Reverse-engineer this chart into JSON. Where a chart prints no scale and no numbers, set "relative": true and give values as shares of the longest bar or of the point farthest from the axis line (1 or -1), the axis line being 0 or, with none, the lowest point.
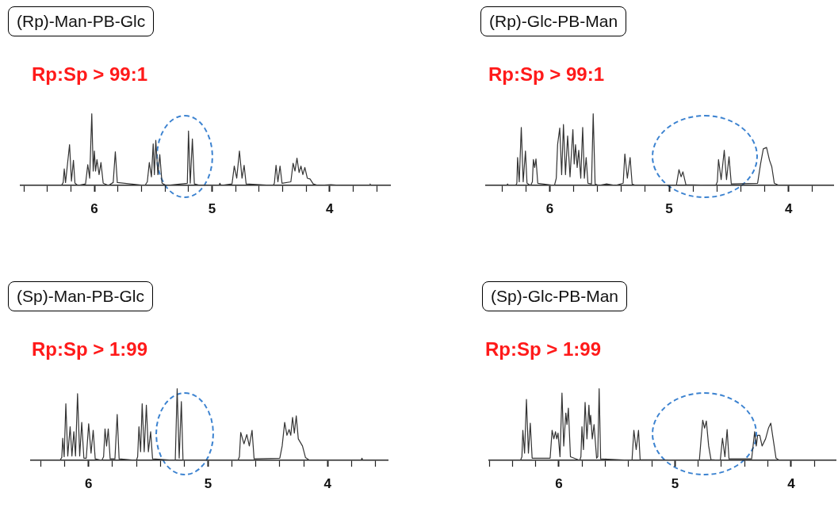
{
  "chart_data": [
    {
      "type": "line",
      "title": "(Rp)-Man-PB-Glc",
      "subtitle": "Rp:Sp > 99:1",
      "relative": true,
      "legend": false,
      "grid": false,
      "marker": "none",
      "tick_labels": "x",
      "xlim": [
        6.63,
        3.48
      ],
      "xticks": [
        {
          "value": 6.6,
          "label": null
        },
        {
          "value": 6.4,
          "label": null
        },
        {
          "value": 6.2,
          "label": null
        },
        6,
        {
          "value": 5.8,
          "label": null
        },
        {
          "value": 5.6,
          "label": null
        },
        {
          "value": 5.4,
          "label": null
        },
        {
          "value": 5.2,
          "label": null
        },
        5,
        {
          "value": 4.8,
          "label": null
        },
        {
          "value": 4.6,
          "label": null
        },
        {
          "value": 4.4,
          "label": null
        },
        {
          "value": 4.2,
          "label": null
        },
        4,
        {
          "value": 3.8,
          "label": null
        },
        {
          "value": 3.6,
          "label": null
        }
      ],
      "series": [
        {
          "color": "#333333",
          "x": [
            6.63,
            6.28,
            6.265,
            6.256,
            6.245,
            6.211,
            6.195,
            6.178,
            6.165,
            6.14,
            6.075,
            6.056,
            6.04,
            6.022,
            6.01,
            6.0,
            5.99,
            5.978,
            5.96,
            5.944,
            5.925,
            5.88,
            5.84,
            5.822,
            5.805,
            5.57,
            5.55,
            5.533,
            5.515,
            5.5,
            5.49,
            5.478,
            5.46,
            5.444,
            5.425,
            5.39,
            5.21,
            5.2,
            5.185,
            5.167,
            5.15,
            5.1,
            4.94,
            4.933,
            4.925,
            4.83,
            4.811,
            4.79,
            4.767,
            4.745,
            4.727,
            4.71,
            4.48,
            4.47,
            4.456,
            4.44,
            4.422,
            4.405,
            4.33,
            4.311,
            4.295,
            4.278,
            4.26,
            4.244,
            4.228,
            4.211,
            4.19,
            4.167,
            4.14,
            4.1,
            3.99,
            3.9,
            3.66,
            3.656,
            3.65,
            3.48
          ],
          "values": [
            0,
            0,
            0.04,
            0.23,
            0.04,
            0.57,
            0.06,
            0.35,
            0.03,
            0,
            0.02,
            0.29,
            0.1,
            1.0,
            0.2,
            0.48,
            0.2,
            0.36,
            0.15,
            0.32,
            0.03,
            0,
            0.04,
            0.47,
            0.04,
            0,
            0.05,
            0.32,
            0.12,
            0.58,
            0.15,
            0.63,
            0.15,
            0.43,
            0.03,
            0,
            0.03,
            0.76,
            0.03,
            0.65,
            0.02,
            0,
            0,
            0.03,
            0,
            0.02,
            0.27,
            0.1,
            0.48,
            0.1,
            0.28,
            0.02,
            0,
            0.03,
            0.28,
            0.05,
            0.27,
            0.03,
            0.05,
            0.31,
            0.2,
            0.38,
            0.18,
            0.27,
            0.15,
            0.25,
            0.1,
            0.09,
            0.02,
            0,
            0.01,
            0,
            0,
            0.02,
            0,
            0
          ]
        }
      ]
    },
    {
      "type": "line",
      "title": "(Rp)-Glc-PB-Man",
      "subtitle": "Rp:Sp > 99:1",
      "relative": true,
      "legend": false,
      "grid": false,
      "marker": "none",
      "tick_labels": "x",
      "xlim": [
        6.54,
        3.62
      ],
      "xticks": [
        {
          "value": 6.4,
          "label": null
        },
        {
          "value": 6.2,
          "label": null
        },
        6,
        {
          "value": 5.8,
          "label": null
        },
        {
          "value": 5.6,
          "label": null
        },
        {
          "value": 5.4,
          "label": null
        },
        {
          "value": 5.2,
          "label": null
        },
        5,
        {
          "value": 4.8,
          "label": null
        },
        {
          "value": 4.6,
          "label": null
        },
        {
          "value": 4.4,
          "label": null
        },
        {
          "value": 4.2,
          "label": null
        },
        4,
        {
          "value": 3.8,
          "label": null
        }
      ],
      "series": [
        {
          "color": "#333333",
          "x": [
            6.54,
            6.36,
            6.353,
            6.345,
            6.285,
            6.275,
            6.269,
            6.255,
            6.238,
            6.222,
            6.203,
            6.19,
            6.16,
            6.145,
            6.137,
            6.126,
            6.115,
            6.1,
            5.96,
            5.945,
            5.934,
            5.916,
            5.9,
            5.885,
            5.868,
            5.85,
            5.83,
            5.806,
            5.795,
            5.784,
            5.77,
            5.757,
            5.74,
            5.724,
            5.71,
            5.695,
            5.68,
            5.65,
            5.636,
            5.62,
            5.59,
            5.525,
            5.45,
            5.385,
            5.371,
            5.35,
            5.327,
            5.31,
            5.28,
            4.94,
            4.918,
            4.9,
            4.885,
            4.86,
            4.61,
            4.597,
            4.587,
            4.565,
            4.539,
            4.52,
            4.499,
            4.48,
            4.26,
            4.235,
            4.212,
            4.185,
            4.16,
            4.141,
            4.12,
            4.08,
            3.62
          ],
          "values": [
            0,
            0,
            0.02,
            0,
            0,
            0.03,
            0.39,
            0.05,
            0.81,
            0.05,
            0.48,
            0.03,
            0,
            0.05,
            0.36,
            0.25,
            0.37,
            0.03,
            0,
            0.1,
            0.57,
            0.8,
            0.15,
            0.85,
            0.15,
            0.69,
            0.12,
            0.78,
            0.3,
            0.57,
            0.25,
            0.49,
            0.1,
            0.81,
            0.1,
            0.39,
            0.03,
            0.02,
            1.0,
            0.02,
            0,
            0.02,
            0,
            0.03,
            0.44,
            0.1,
            0.39,
            0.02,
            0,
            0,
            0.22,
            0.12,
            0.19,
            0.01,
            0,
            0.05,
            0.36,
            0.08,
            0.49,
            0.08,
            0.4,
            0.02,
            0.03,
            0.3,
            0.51,
            0.53,
            0.35,
            0.26,
            0.03,
            0,
            0
          ]
        }
      ]
    },
    {
      "type": "line",
      "title": "(Sp)-Man-PB-Glc",
      "subtitle": "Rp:Sp > 1:99",
      "relative": true,
      "legend": false,
      "grid": false,
      "marker": "none",
      "tick_labels": "x",
      "xlim": [
        6.49,
        3.49
      ],
      "xticks": [
        {
          "value": 6.4,
          "label": null
        },
        {
          "value": 6.2,
          "label": null
        },
        6,
        {
          "value": 5.8,
          "label": null
        },
        {
          "value": 5.6,
          "label": null
        },
        {
          "value": 5.4,
          "label": null
        },
        {
          "value": 5.2,
          "label": null
        },
        5,
        {
          "value": 4.8,
          "label": null
        },
        {
          "value": 4.6,
          "label": null
        },
        {
          "value": 4.4,
          "label": null
        },
        {
          "value": 4.2,
          "label": null
        },
        4,
        {
          "value": 3.8,
          "label": null
        },
        {
          "value": 3.6,
          "label": null
        }
      ],
      "series": [
        {
          "color": "#333333",
          "x": [
            6.49,
            6.24,
            6.225,
            6.217,
            6.205,
            6.191,
            6.175,
            6.155,
            6.14,
            6.124,
            6.11,
            6.093,
            6.075,
            6.058,
            6.04,
            6.02,
            6.0,
            5.98,
            5.962,
            5.945,
            5.89,
            5.875,
            5.863,
            5.85,
            5.836,
            5.82,
            5.78,
            5.761,
            5.745,
            5.6,
            5.59,
            5.579,
            5.565,
            5.552,
            5.535,
            5.517,
            5.5,
            5.481,
            5.465,
            5.275,
            5.259,
            5.242,
            5.224,
            5.21,
            4.75,
            4.738,
            4.727,
            4.7,
            4.676,
            4.655,
            4.632,
            4.615,
            4.4,
            4.38,
            4.359,
            4.34,
            4.322,
            4.308,
            4.293,
            4.278,
            4.262,
            4.245,
            4.21,
            4.185,
            4.15,
            3.72,
            3.712,
            3.705,
            3.49
          ],
          "values": [
            0,
            0,
            0.04,
            0.31,
            0.05,
            0.79,
            0.06,
            0.47,
            0.06,
            0.4,
            0.06,
            0.93,
            0.06,
            0.53,
            0.03,
            0.03,
            0.51,
            0.1,
            0.42,
            0.02,
            0,
            0.05,
            0.44,
            0.2,
            0.44,
            0.02,
            0.02,
            0.64,
            0.02,
            0,
            0.05,
            0.47,
            0.12,
            0.79,
            0.12,
            0.77,
            0.12,
            0.4,
            0.02,
            0,
            1.0,
            0.03,
            0.82,
            0,
            0,
            0.05,
            0.39,
            0.23,
            0.36,
            0.2,
            0.42,
            0.02,
            0.03,
            0.2,
            0.53,
            0.35,
            0.43,
            0.35,
            0.6,
            0.38,
            0.62,
            0.3,
            0.2,
            0.04,
            0,
            0,
            0.03,
            0,
            0
          ]
        }
      ]
    },
    {
      "type": "line",
      "title": "(Sp)-Glc-PB-Man",
      "subtitle": "Rp:Sp > 1:99",
      "relative": true,
      "legend": false,
      "grid": false,
      "marker": "none",
      "tick_labels": "x",
      "xlim": [
        6.6,
        3.61
      ],
      "xticks": [
        {
          "value": 6.6,
          "label": null
        },
        {
          "value": 6.4,
          "label": null
        },
        {
          "value": 6.2,
          "label": null
        },
        6,
        {
          "value": 5.8,
          "label": null
        },
        {
          "value": 5.6,
          "label": null
        },
        {
          "value": 5.4,
          "label": null
        },
        {
          "value": 5.2,
          "label": null
        },
        5,
        {
          "value": 4.8,
          "label": null
        },
        {
          "value": 4.6,
          "label": null
        },
        {
          "value": 4.4,
          "label": null
        },
        {
          "value": 4.2,
          "label": null
        },
        4,
        {
          "value": 3.8,
          "label": null
        }
      ],
      "series": [
        {
          "color": "#333333",
          "x": [
            6.6,
            6.33,
            6.318,
            6.31,
            6.295,
            6.279,
            6.262,
            6.246,
            6.23,
            6.075,
            6.058,
            6.043,
            6.029,
            6.018,
            6.007,
            5.99,
            5.973,
            5.958,
            5.94,
            5.93,
            5.918,
            5.9,
            5.82,
            5.81,
            5.801,
            5.788,
            5.774,
            5.758,
            5.741,
            5.733,
            5.726,
            5.712,
            5.697,
            5.675,
            5.665,
            5.653,
            5.64,
            5.37,
            5.354,
            5.334,
            5.314,
            5.3,
            4.79,
            4.775,
            4.761,
            4.745,
            4.73,
            4.71,
            4.69,
            4.61,
            4.591,
            4.57,
            4.551,
            4.535,
            4.34,
            4.314,
            4.3,
            4.288,
            4.27,
            4.25,
            4.22,
            4.195,
            4.175,
            4.155,
            4.13,
            4.1,
            3.61
          ],
          "values": [
            0,
            0,
            0.05,
            0.42,
            0.1,
            0.85,
            0.1,
            0.52,
            0.03,
            0.03,
            0.42,
            0.3,
            0.4,
            0.3,
            0.38,
            0.05,
            0.94,
            0.2,
            0.66,
            0.5,
            0.73,
            0.05,
            0,
            0.05,
            0.47,
            0.15,
            0.81,
            0.3,
            0.77,
            0.5,
            0.63,
            0.3,
            0.5,
            0.03,
            0.05,
            1.0,
            0.02,
            0,
            0.42,
            0.15,
            0.42,
            0.01,
            0,
            0.3,
            0.56,
            0.45,
            0.55,
            0.2,
            0.01,
            0,
            0.31,
            0.05,
            0.43,
            0.02,
            0.02,
            0.4,
            0.2,
            0.35,
            0.35,
            0.2,
            0.3,
            0.45,
            0.52,
            0.3,
            0.03,
            0,
            0
          ]
        }
      ]
    }
  ]
}
